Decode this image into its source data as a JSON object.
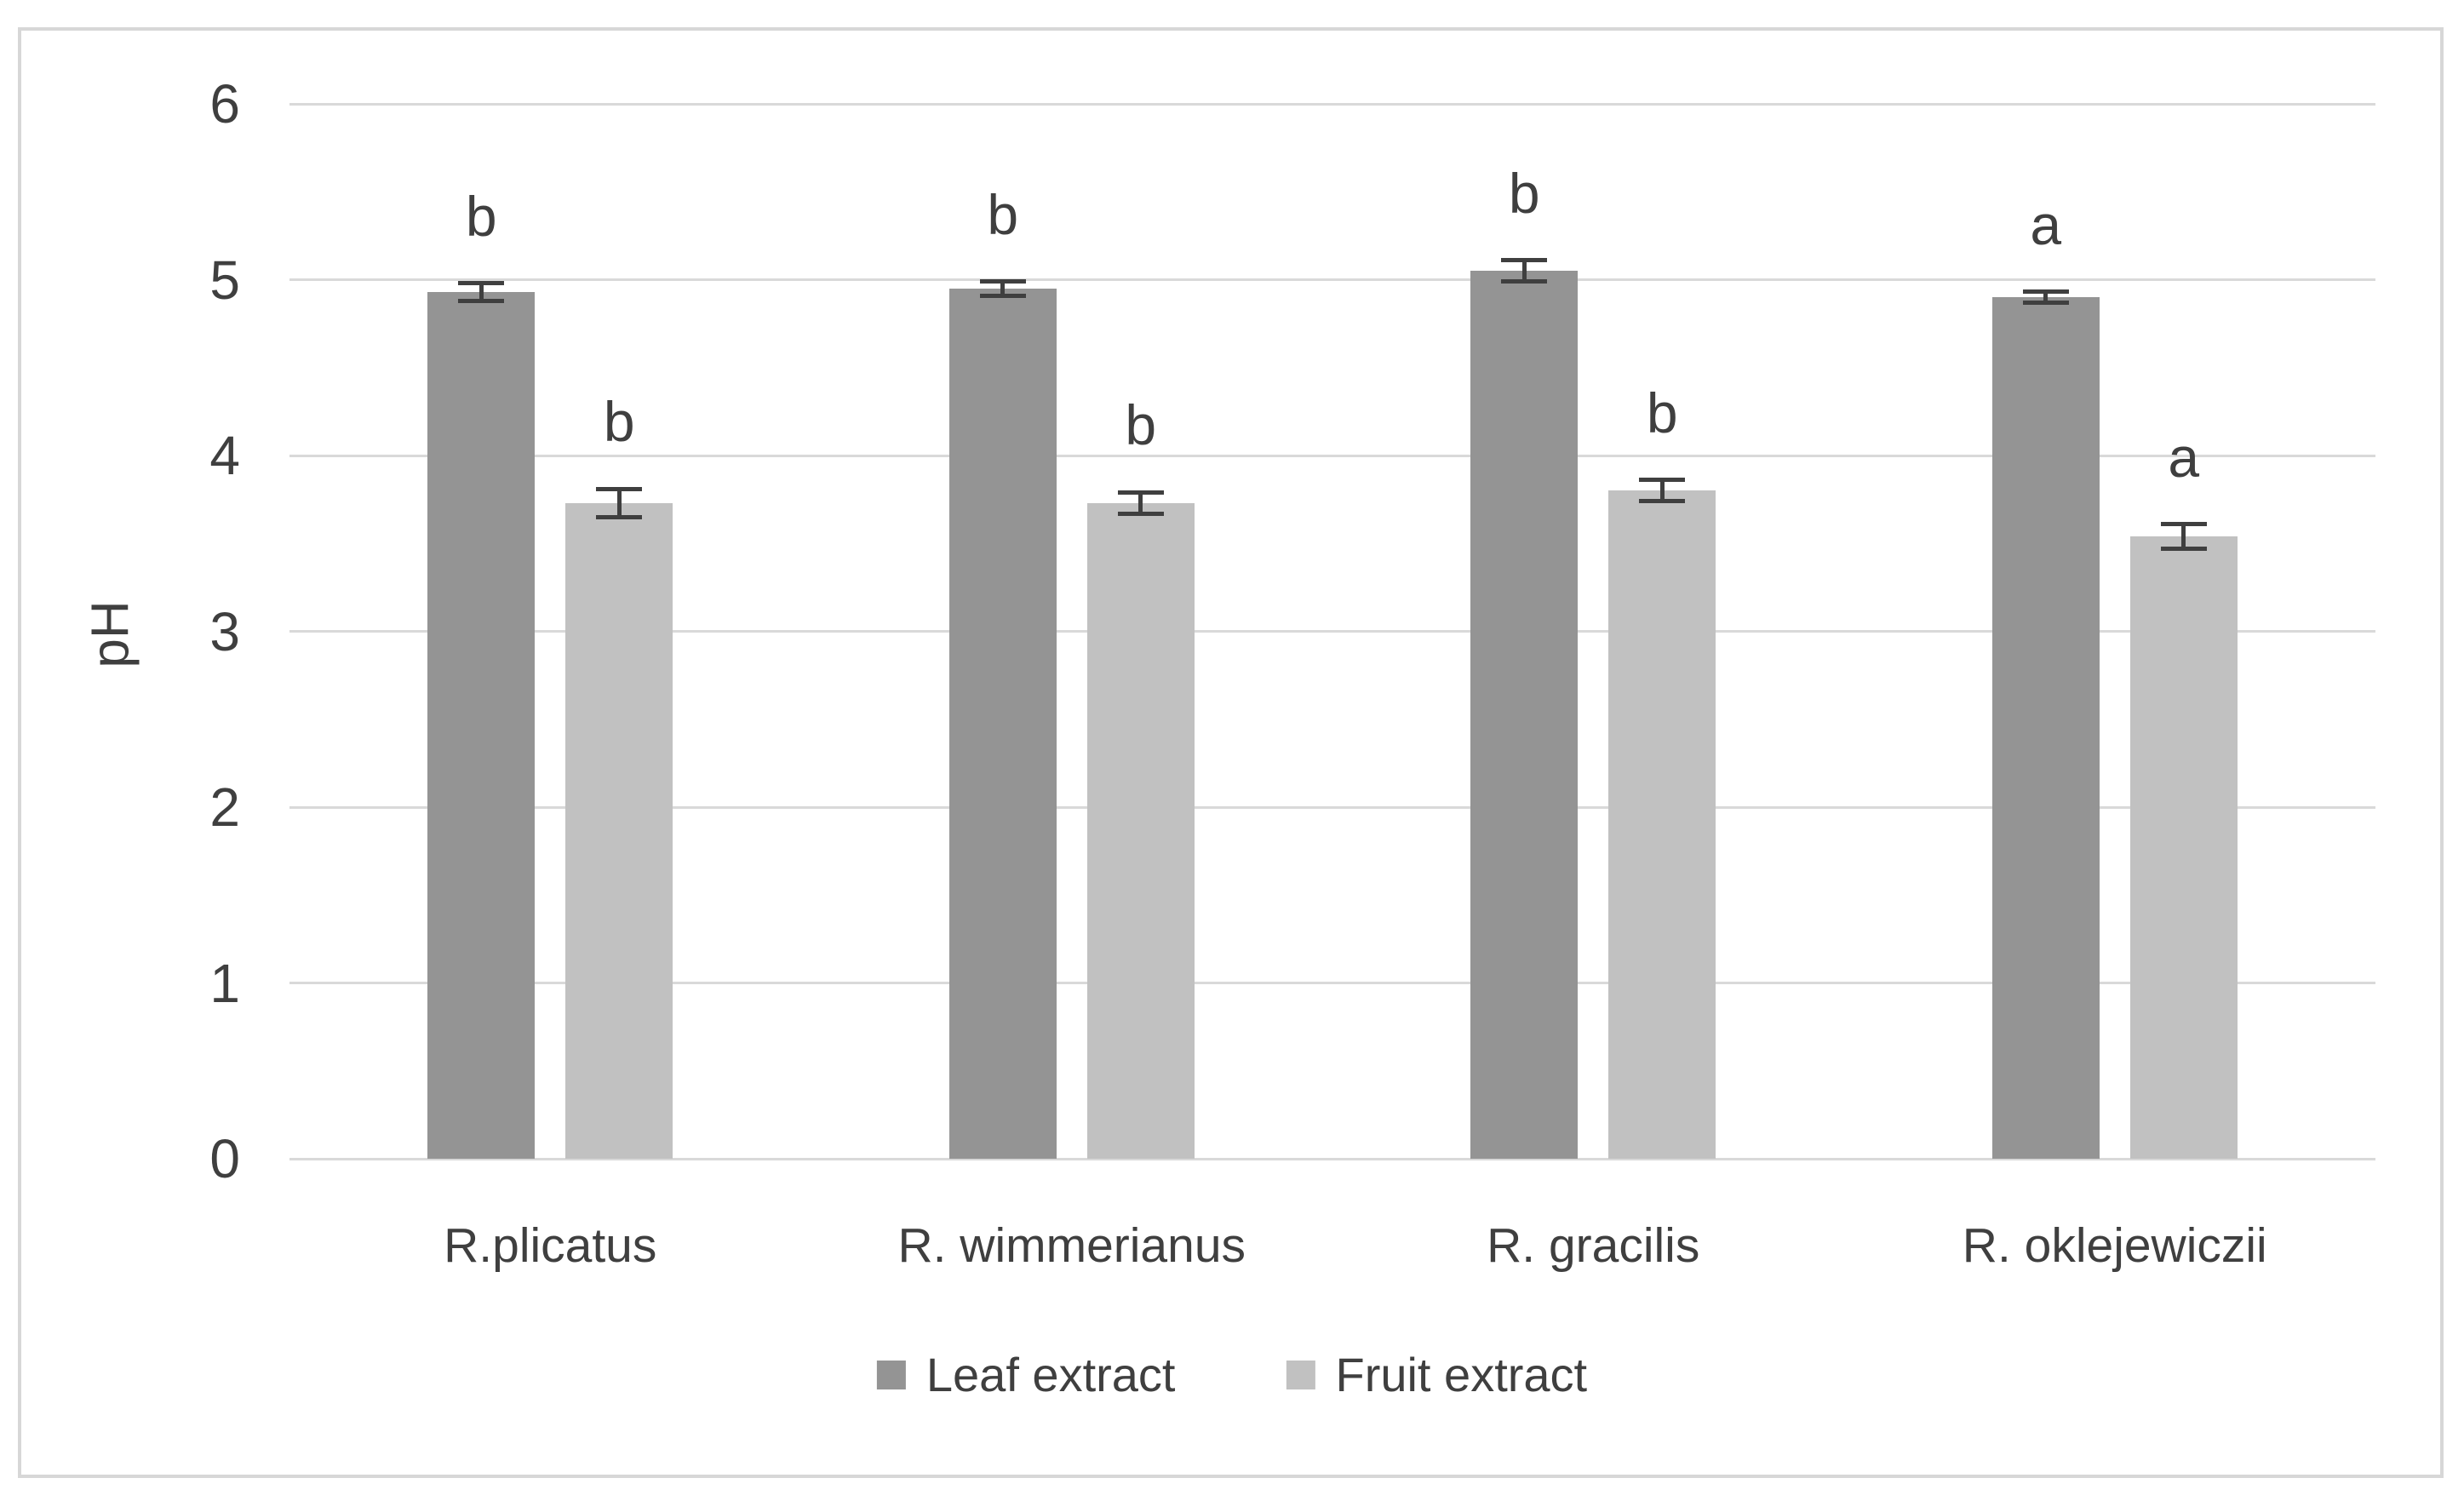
{
  "chart_data": {
    "type": "bar",
    "title": "",
    "xlabel": "",
    "ylabel": "pH",
    "ylim": [
      0,
      6
    ],
    "yticks": [
      0,
      1,
      2,
      3,
      4,
      5,
      6
    ],
    "grid": true,
    "legend_position": "bottom-center",
    "categories": [
      "R.plicatus",
      "R. wimmerianus",
      "R. gracilis",
      "R. oklejewiczii"
    ],
    "series": [
      {
        "name": "Leaf extract",
        "color": "#949494",
        "values": [
          4.93,
          4.95,
          5.05,
          4.9
        ],
        "errors": [
          0.05,
          0.04,
          0.06,
          0.03
        ],
        "significance_letters": [
          "b",
          "b",
          "b",
          "a"
        ]
      },
      {
        "name": "Fruit extract",
        "color": "#c1c1c1",
        "values": [
          3.73,
          3.73,
          3.8,
          3.54
        ],
        "errors": [
          0.08,
          0.06,
          0.06,
          0.07
        ],
        "significance_letters": [
          "b",
          "b",
          "b",
          "a"
        ]
      }
    ]
  },
  "colors": {
    "background": "#ffffff",
    "gridline": "#d9d9d9",
    "frame_border": "#d7d7d7",
    "text": "#3f3f3f",
    "error_bar": "#3f3f3f"
  }
}
